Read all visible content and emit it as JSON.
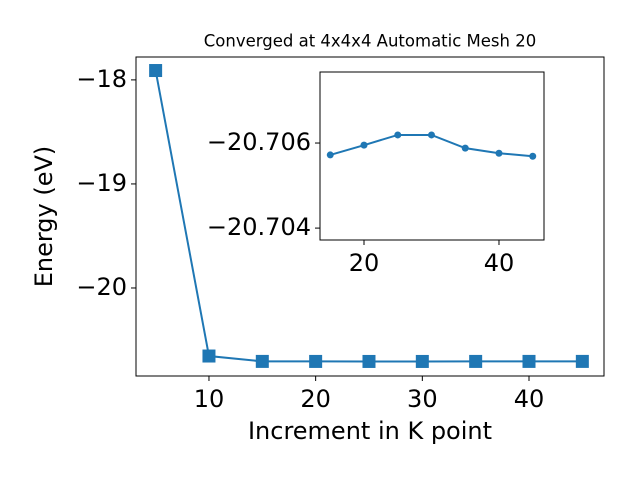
{
  "chart_data": [
    {
      "type": "line",
      "title": "Converged at 4x4x4 Automatic Mesh 20",
      "x_label": "Increment in K point",
      "y_label": "Energy (eV)",
      "x": [
        5,
        10,
        15,
        20,
        25,
        30,
        35,
        40,
        45
      ],
      "series": [
        {
          "color": "#1f77b4",
          "marker": "square",
          "values": [
            -17.91,
            -20.654,
            -20.70572,
            -20.70595,
            -20.70619,
            -20.70619,
            -20.70588,
            -20.70576,
            -20.70569
          ]
        }
      ],
      "xlim": [
        3.16,
        47.03
      ],
      "xticks": [
        10,
        20,
        30,
        40
      ],
      "ylim": [
        -20.846,
        -17.78
      ],
      "yticks": [
        {
          "value": -20,
          "label": "−20"
        },
        {
          "value": -19,
          "label": "−19"
        },
        {
          "value": -18,
          "label": "−18"
        }
      ]
    },
    {
      "type": "line",
      "x": [
        15,
        20,
        25,
        30,
        35,
        40,
        45
      ],
      "series": [
        {
          "color": "#1f77b4",
          "marker": "circle",
          "values": [
            -20.70572,
            -20.70595,
            -20.70619,
            -20.70619,
            -20.70588,
            -20.70576,
            -20.70569
          ]
        }
      ],
      "xlim": [
        13.48,
        46.67
      ],
      "xticks": [
        20,
        40
      ],
      "ylim": [
        -20.70372,
        -20.70767
      ],
      "yticks": [
        {
          "value": -20.704,
          "label": "−20.704"
        },
        {
          "value": -20.706,
          "label": "−20.706"
        }
      ]
    }
  ]
}
